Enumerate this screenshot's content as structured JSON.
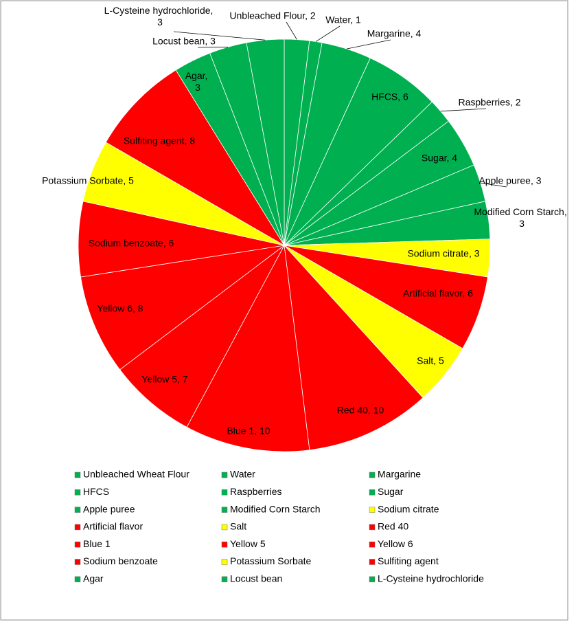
{
  "chart_data": {
    "type": "pie",
    "categories": [
      "Unbleached Wheat Flour",
      "Water",
      "Margarine",
      "HFCS",
      "Raspberries",
      "Sugar",
      "Apple puree",
      "Modified Corn Starch",
      "Sodium citrate",
      "Artificial flavor",
      "Salt",
      "Red 40",
      "Blue 1",
      "Yellow 5",
      "Yellow 6",
      "Sodium benzoate",
      "Potassium Sorbate",
      "Sulfiting agent",
      "Agar",
      "Locust bean",
      "L-Cysteine hydrochloride"
    ],
    "values": [
      2,
      1,
      4,
      6,
      2,
      4,
      3,
      3,
      3,
      6,
      5,
      10,
      10,
      7,
      8,
      6,
      5,
      8,
      3,
      3,
      3
    ],
    "value_labels": [
      "Unbleached  Flour, 2",
      "Water, 1",
      "Margarine, 4",
      "HFCS, 6",
      "Raspberries, 2",
      "Sugar, 4",
      "Apple puree, 3",
      "Modified Corn Starch, 3",
      "Sodium citrate, 3",
      "Artificial flavor,  6",
      "Salt, 5",
      "Red 40, 10",
      "Blue 1, 10",
      "Yellow 5, 7",
      "Yellow 6, 8",
      "Sodium benzoate, 6",
      "Potassium Sorbate, 5",
      "Sulfiting agent, 8",
      "Agar, 3",
      "Locust bean, 3",
      "L-Cysteine hydrochloride, 3"
    ],
    "colors": [
      "#00b050",
      "#00b050",
      "#00b050",
      "#00b050",
      "#00b050",
      "#00b050",
      "#00b050",
      "#00b050",
      "#ffff00",
      "#ff0000",
      "#ffff00",
      "#ff0000",
      "#ff0000",
      "#ff0000",
      "#ff0000",
      "#ff0000",
      "#ffff00",
      "#ff0000",
      "#00b050",
      "#00b050",
      "#00b050"
    ],
    "legend": "bottom"
  }
}
